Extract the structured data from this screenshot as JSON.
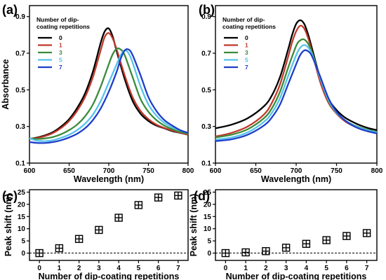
{
  "chart_data": [
    {
      "id": "a",
      "panel_label": "(a)",
      "type": "line",
      "xlabel": "Wavelength (nm)",
      "ylabel": "Absorbance",
      "xlim": [
        600,
        800
      ],
      "ylim": [
        0.1,
        0.96
      ],
      "xticks": [
        600,
        650,
        700,
        750,
        800
      ],
      "yticks": [
        0.1,
        0.3,
        0.5,
        0.7,
        0.9
      ],
      "legend": {
        "title_lines": [
          "Number of dip-",
          "coating repetitions"
        ],
        "position": "top-left"
      },
      "series": [
        {
          "name": "0",
          "color": "#000000",
          "x": [
            600,
            610,
            620,
            630,
            640,
            650,
            660,
            670,
            680,
            690,
            695,
            700,
            705,
            710,
            720,
            730,
            740,
            750,
            760,
            770,
            780,
            790,
            800
          ],
          "y": [
            0.232,
            0.24,
            0.252,
            0.27,
            0.3,
            0.34,
            0.4,
            0.48,
            0.6,
            0.76,
            0.82,
            0.835,
            0.79,
            0.71,
            0.56,
            0.44,
            0.37,
            0.33,
            0.305,
            0.29,
            0.275,
            0.265,
            0.255
          ]
        },
        {
          "name": "1",
          "color": "#c0392b",
          "x": [
            600,
            610,
            620,
            630,
            640,
            650,
            660,
            670,
            680,
            690,
            695,
            700,
            705,
            710,
            720,
            730,
            740,
            750,
            760,
            770,
            780,
            790,
            800
          ],
          "y": [
            0.232,
            0.237,
            0.248,
            0.265,
            0.292,
            0.33,
            0.385,
            0.46,
            0.57,
            0.72,
            0.79,
            0.81,
            0.78,
            0.72,
            0.58,
            0.46,
            0.385,
            0.34,
            0.31,
            0.292,
            0.278,
            0.266,
            0.255
          ]
        },
        {
          "name": "3",
          "color": "#3a8a3a",
          "x": [
            600,
            610,
            620,
            630,
            640,
            650,
            660,
            670,
            680,
            690,
            700,
            705,
            710,
            715,
            720,
            730,
            740,
            750,
            760,
            770,
            780,
            790,
            800
          ],
          "y": [
            0.235,
            0.232,
            0.235,
            0.243,
            0.258,
            0.28,
            0.31,
            0.355,
            0.42,
            0.52,
            0.64,
            0.695,
            0.725,
            0.72,
            0.69,
            0.57,
            0.45,
            0.38,
            0.335,
            0.305,
            0.285,
            0.27,
            0.26
          ]
        },
        {
          "name": "5",
          "color": "#55c3ec",
          "x": [
            600,
            610,
            620,
            630,
            640,
            650,
            660,
            670,
            680,
            690,
            700,
            710,
            715,
            720,
            725,
            730,
            740,
            750,
            760,
            770,
            780,
            790,
            800
          ],
          "y": [
            0.235,
            0.222,
            0.22,
            0.225,
            0.238,
            0.255,
            0.28,
            0.315,
            0.365,
            0.44,
            0.54,
            0.64,
            0.69,
            0.715,
            0.7,
            0.65,
            0.52,
            0.42,
            0.36,
            0.32,
            0.295,
            0.278,
            0.265
          ]
        },
        {
          "name": "7",
          "color": "#1f3ec9",
          "x": [
            600,
            610,
            620,
            630,
            640,
            650,
            660,
            670,
            680,
            690,
            700,
            710,
            715,
            720,
            725,
            730,
            740,
            750,
            760,
            770,
            780,
            790,
            800
          ],
          "y": [
            0.215,
            0.21,
            0.21,
            0.215,
            0.225,
            0.24,
            0.26,
            0.29,
            0.335,
            0.4,
            0.49,
            0.6,
            0.67,
            0.715,
            0.72,
            0.69,
            0.58,
            0.46,
            0.385,
            0.335,
            0.305,
            0.28,
            0.265
          ]
        }
      ]
    },
    {
      "id": "b",
      "panel_label": "(b)",
      "type": "line",
      "xlabel": "Wavelength (nm)",
      "ylabel": "",
      "xlim": [
        600,
        800
      ],
      "ylim": [
        0.1,
        0.96
      ],
      "xticks": [
        600,
        650,
        700,
        750,
        800
      ],
      "yticks": [
        0.1,
        0.3,
        0.5,
        0.7,
        0.9
      ],
      "legend": {
        "title_lines": [
          "Number of dip-",
          "coating repetitions"
        ],
        "position": "top-left"
      },
      "series": [
        {
          "name": "0",
          "color": "#000000",
          "x": [
            600,
            620,
            640,
            660,
            670,
            680,
            690,
            695,
            700,
            705,
            710,
            715,
            720,
            730,
            740,
            750,
            760,
            770,
            780,
            790,
            800
          ],
          "y": [
            0.29,
            0.31,
            0.345,
            0.41,
            0.47,
            0.57,
            0.72,
            0.8,
            0.86,
            0.88,
            0.86,
            0.8,
            0.72,
            0.56,
            0.45,
            0.39,
            0.35,
            0.325,
            0.305,
            0.29,
            0.28
          ]
        },
        {
          "name": "1",
          "color": "#c0392b",
          "x": [
            600,
            620,
            640,
            660,
            670,
            680,
            690,
            695,
            700,
            705,
            710,
            715,
            720,
            730,
            740,
            750,
            760,
            770,
            780,
            790,
            800
          ],
          "y": [
            0.245,
            0.265,
            0.3,
            0.365,
            0.43,
            0.53,
            0.68,
            0.76,
            0.82,
            0.85,
            0.835,
            0.78,
            0.7,
            0.54,
            0.43,
            0.37,
            0.33,
            0.305,
            0.29,
            0.278,
            0.268
          ]
        },
        {
          "name": "3",
          "color": "#3a8a3a",
          "x": [
            600,
            620,
            640,
            660,
            670,
            680,
            690,
            700,
            705,
            710,
            715,
            720,
            730,
            740,
            750,
            760,
            770,
            780,
            790,
            800
          ],
          "y": [
            0.24,
            0.255,
            0.285,
            0.345,
            0.4,
            0.49,
            0.62,
            0.74,
            0.77,
            0.775,
            0.75,
            0.7,
            0.56,
            0.44,
            0.375,
            0.335,
            0.31,
            0.293,
            0.28,
            0.27
          ]
        },
        {
          "name": "5",
          "color": "#55c3ec",
          "x": [
            600,
            620,
            640,
            660,
            670,
            680,
            690,
            700,
            705,
            710,
            715,
            720,
            730,
            740,
            750,
            760,
            770,
            780,
            790,
            800
          ],
          "y": [
            0.228,
            0.24,
            0.268,
            0.325,
            0.375,
            0.455,
            0.575,
            0.69,
            0.73,
            0.745,
            0.73,
            0.69,
            0.56,
            0.445,
            0.375,
            0.335,
            0.308,
            0.29,
            0.277,
            0.267
          ]
        },
        {
          "name": "7",
          "color": "#1f3ec9",
          "x": [
            600,
            620,
            640,
            660,
            670,
            680,
            690,
            700,
            705,
            710,
            715,
            720,
            730,
            740,
            750,
            760,
            770,
            780,
            790,
            800
          ],
          "y": [
            0.22,
            0.23,
            0.255,
            0.305,
            0.35,
            0.42,
            0.53,
            0.64,
            0.69,
            0.715,
            0.71,
            0.68,
            0.57,
            0.455,
            0.38,
            0.335,
            0.305,
            0.285,
            0.272,
            0.262
          ]
        }
      ]
    },
    {
      "id": "c",
      "panel_label": "(c)",
      "type": "scatter",
      "xlabel": "Number of dip-coating repetitions",
      "ylabel": "Peak shift (nm)",
      "xlim": [
        -0.5,
        7.5
      ],
      "ylim": [
        -3,
        26
      ],
      "xticks": [
        0,
        1,
        2,
        3,
        4,
        5,
        6,
        7
      ],
      "yticks": [
        0,
        5,
        10,
        15,
        20,
        25
      ],
      "zero_line": true,
      "series": [
        {
          "name": "",
          "color": "#000000",
          "x": [
            0,
            1,
            2,
            3,
            4,
            5,
            6,
            7
          ],
          "y": [
            0,
            2,
            5.8,
            9.5,
            14.5,
            19.7,
            22.8,
            23.6
          ]
        }
      ]
    },
    {
      "id": "d",
      "panel_label": "(d)",
      "type": "scatter",
      "xlabel": "Number of dip-coating repetitions",
      "ylabel": "Peak shift (nm)",
      "xlim": [
        -0.5,
        7.5
      ],
      "ylim": [
        -3,
        26
      ],
      "xticks": [
        0,
        1,
        2,
        3,
        4,
        5,
        6,
        7
      ],
      "yticks": [
        0,
        5,
        10,
        15,
        20,
        25
      ],
      "zero_line": true,
      "series": [
        {
          "name": "",
          "color": "#000000",
          "x": [
            0,
            1,
            2,
            3,
            4,
            5,
            6,
            7
          ],
          "y": [
            0,
            0.3,
            0.8,
            2.2,
            3.8,
            5.3,
            7,
            8.2
          ]
        }
      ]
    }
  ]
}
